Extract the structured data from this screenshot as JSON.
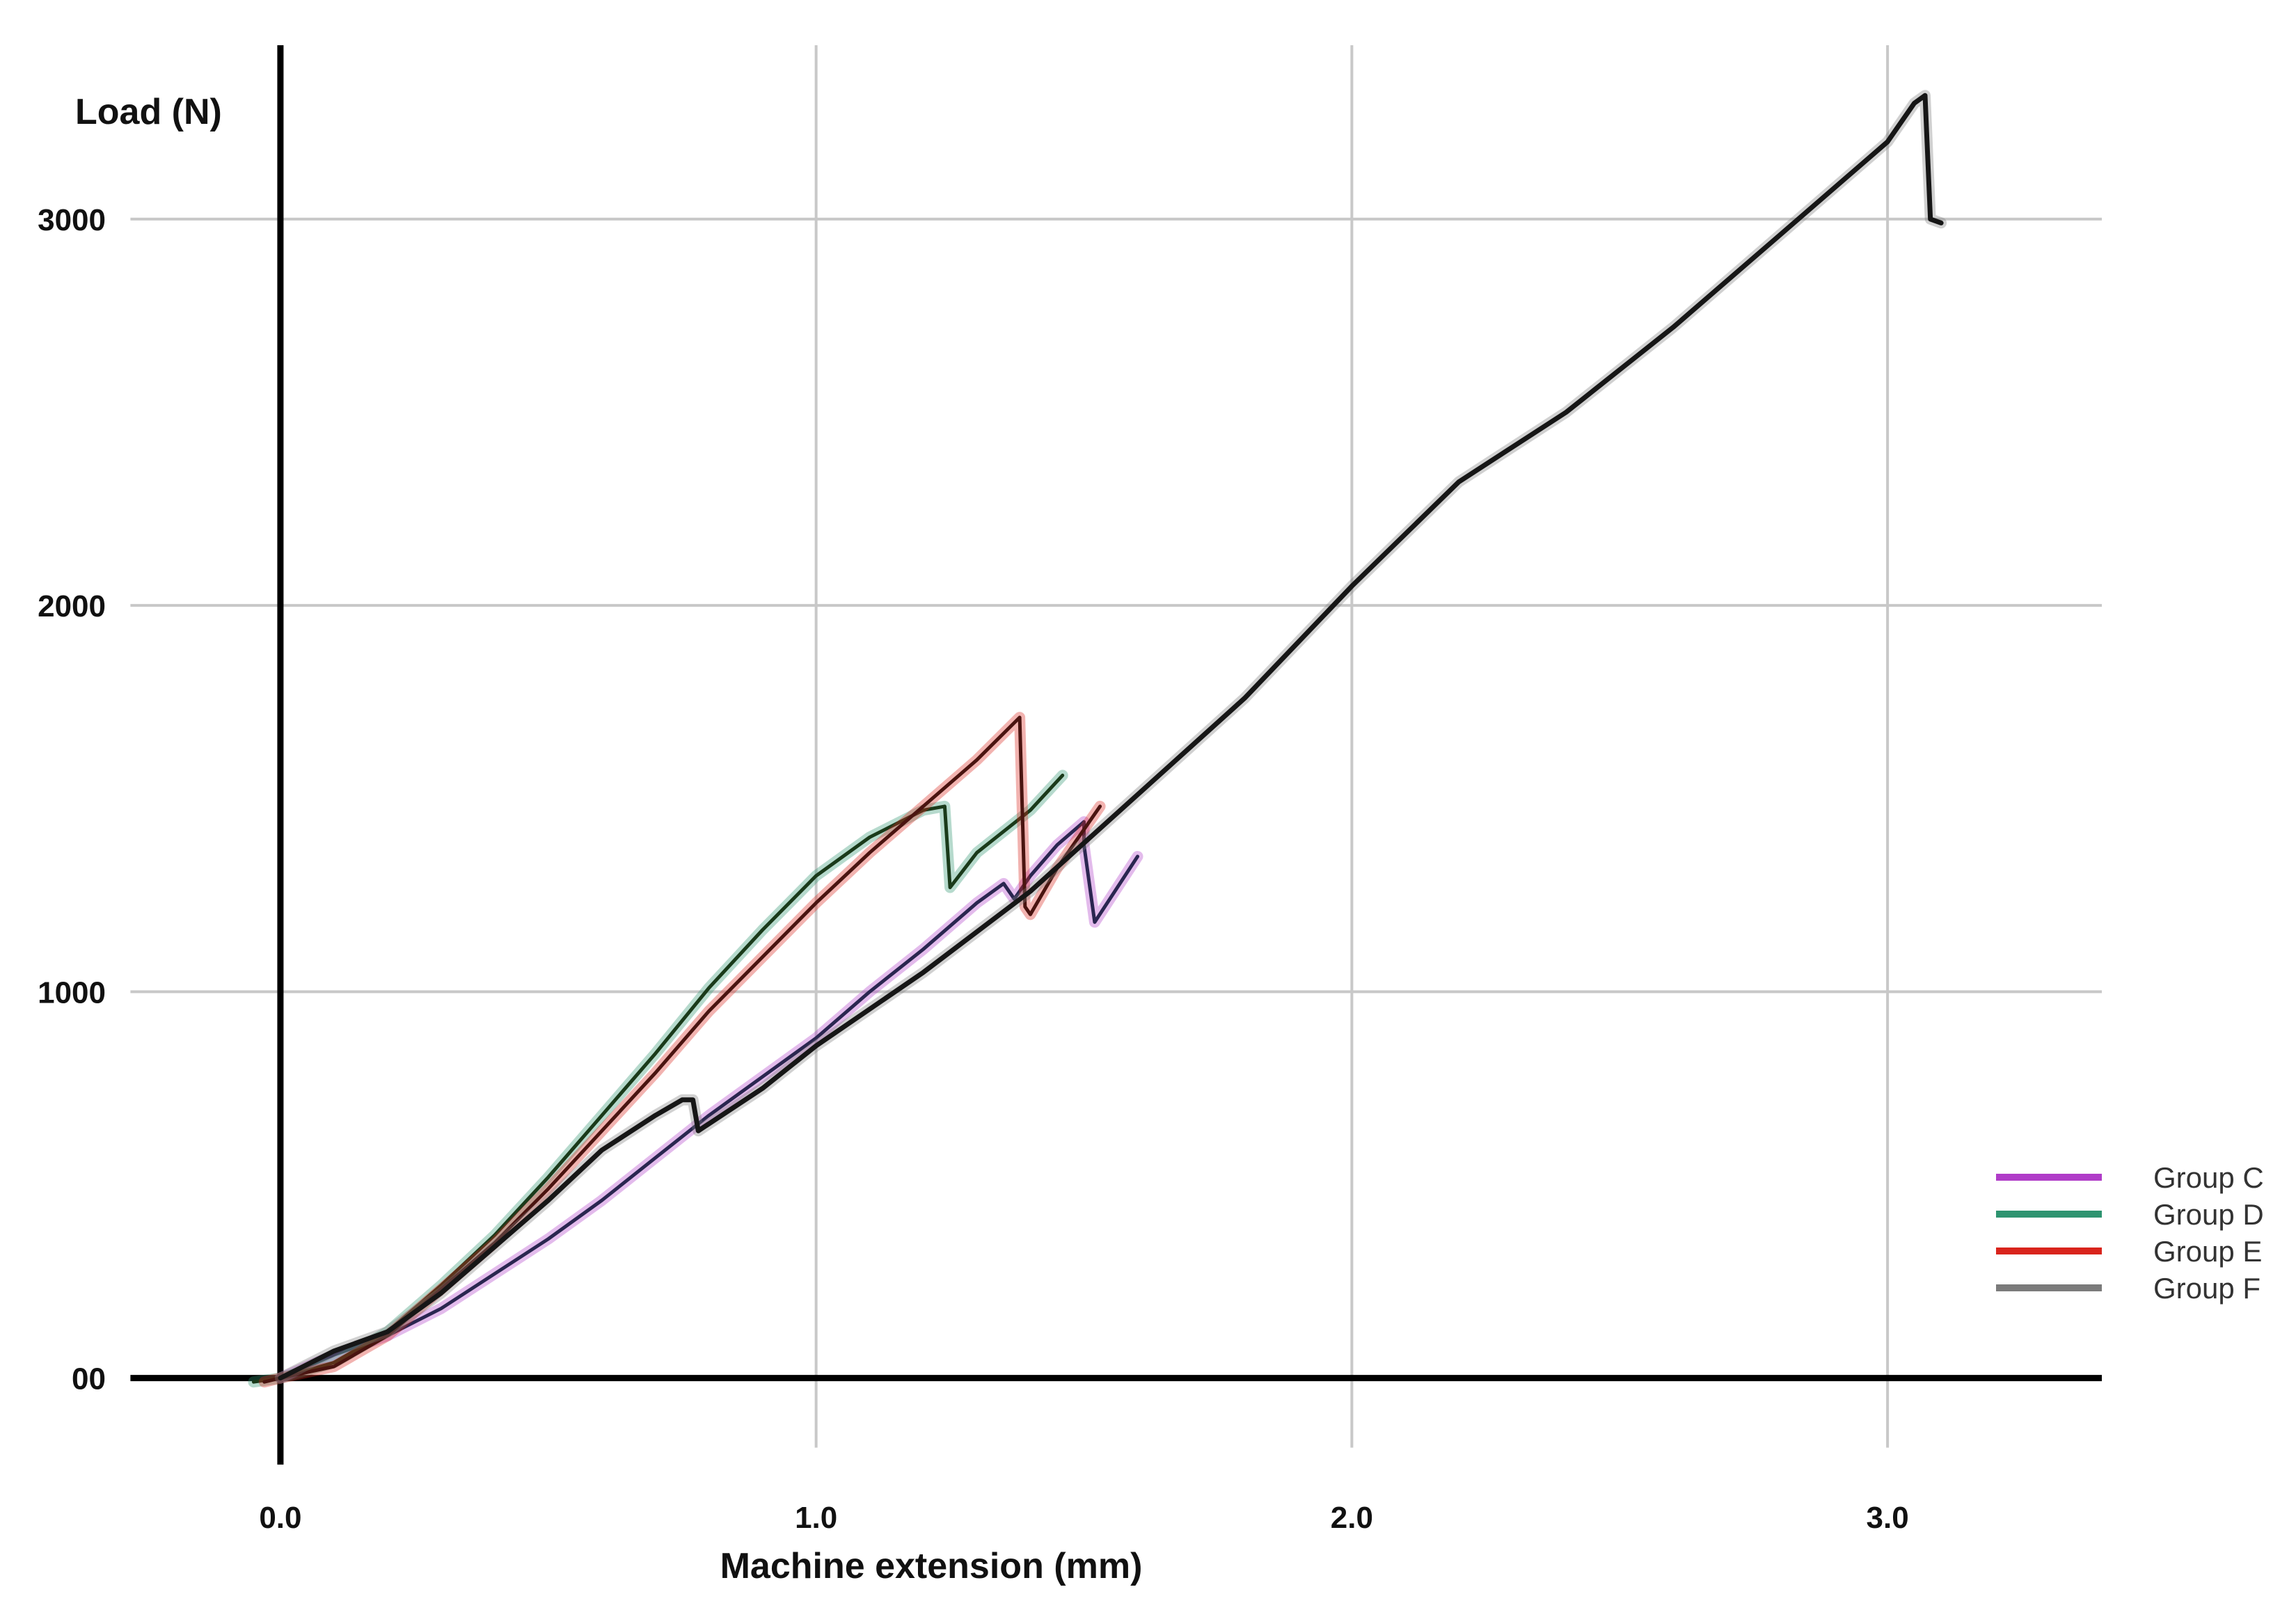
{
  "chart_data": {
    "type": "line",
    "title": "",
    "xlabel": "Machine extension (mm)",
    "ylabel": "Load (N)",
    "xlim": [
      -0.3,
      3.4
    ],
    "ylim": [
      -260,
      3450
    ],
    "x_ticks": [
      {
        "value": 0,
        "label": "0.0"
      },
      {
        "value": 1,
        "label": "1.0"
      },
      {
        "value": 2,
        "label": "2.0"
      },
      {
        "value": 3,
        "label": "3.0"
      }
    ],
    "y_ticks": [
      {
        "value": 0,
        "label": "00"
      },
      {
        "value": 1000,
        "label": "1000"
      },
      {
        "value": 2000,
        "label": "2000"
      },
      {
        "value": 3000,
        "label": "3000"
      }
    ],
    "grid": true,
    "legend_position": "right",
    "series": [
      {
        "name": "Group C",
        "color": "#b03cc8",
        "trace_color": "#2a2650",
        "x": [
          0,
          0.1,
          0.2,
          0.3,
          0.4,
          0.5,
          0.6,
          0.7,
          0.8,
          0.9,
          1.0,
          1.1,
          1.2,
          1.3,
          1.35,
          1.37,
          1.4,
          1.45,
          1.5,
          1.5,
          1.52,
          1.6
        ],
        "y": [
          0,
          60,
          110,
          180,
          270,
          360,
          460,
          570,
          680,
          780,
          880,
          1000,
          1110,
          1230,
          1280,
          1240,
          1300,
          1380,
          1440,
          1380,
          1180,
          1350
        ]
      },
      {
        "name": "Group D",
        "color": "#2e9470",
        "trace_color": "#1a3a1a",
        "x": [
          -0.05,
          0,
          0.1,
          0.2,
          0.3,
          0.4,
          0.5,
          0.6,
          0.7,
          0.8,
          0.9,
          1.0,
          1.1,
          1.2,
          1.24,
          1.25,
          1.3,
          1.4,
          1.46
        ],
        "y": [
          -10,
          0,
          40,
          120,
          240,
          370,
          520,
          680,
          840,
          1010,
          1160,
          1300,
          1400,
          1470,
          1480,
          1270,
          1360,
          1470,
          1560
        ]
      },
      {
        "name": "Group E",
        "color": "#d9241c",
        "trace_color": "#4a1410",
        "x": [
          -0.03,
          0,
          0.1,
          0.2,
          0.3,
          0.4,
          0.5,
          0.6,
          0.7,
          0.8,
          0.9,
          1.0,
          1.1,
          1.2,
          1.3,
          1.38,
          1.39,
          1.4,
          1.45,
          1.5,
          1.53
        ],
        "y": [
          -10,
          0,
          30,
          110,
          230,
          350,
          490,
          640,
          790,
          950,
          1090,
          1230,
          1360,
          1480,
          1600,
          1710,
          1220,
          1200,
          1320,
          1420,
          1480
        ]
      },
      {
        "name": "Group F",
        "color": "#7b7b7b",
        "trace_color": "#161616",
        "x": [
          0,
          0.1,
          0.2,
          0.3,
          0.4,
          0.5,
          0.6,
          0.7,
          0.75,
          0.77,
          0.78,
          0.9,
          1.0,
          1.2,
          1.4,
          1.6,
          1.8,
          2.0,
          2.2,
          2.4,
          2.6,
          2.8,
          3.0,
          3.05,
          3.07,
          3.08,
          3.1
        ],
        "y": [
          0,
          70,
          120,
          220,
          340,
          460,
          590,
          680,
          720,
          720,
          640,
          750,
          860,
          1050,
          1260,
          1510,
          1760,
          2050,
          2320,
          2500,
          2720,
          2960,
          3200,
          3300,
          3320,
          3000,
          2990
        ]
      }
    ]
  }
}
